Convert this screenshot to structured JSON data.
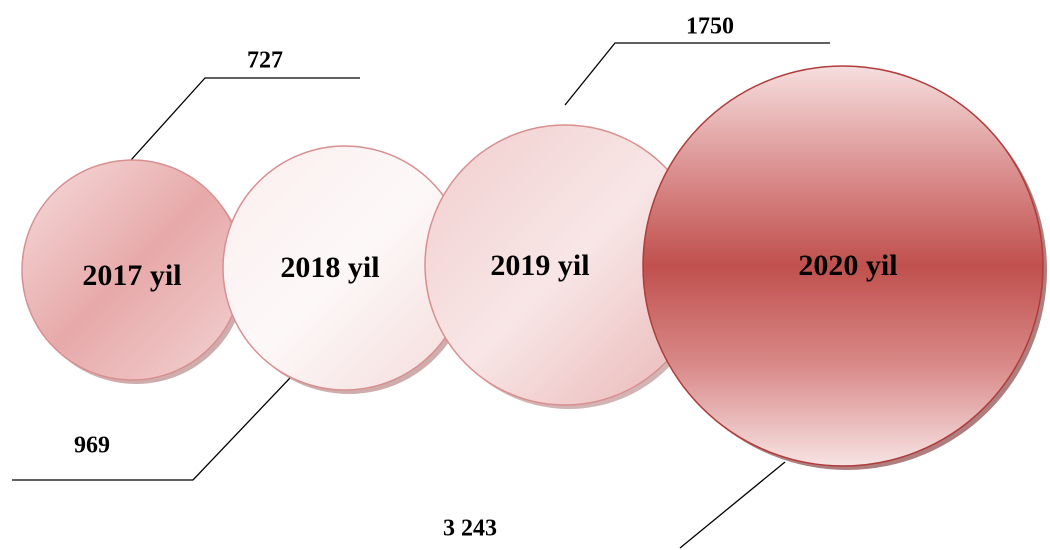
{
  "nodes": [
    {
      "label": "2017 yil",
      "value": "727"
    },
    {
      "label": "2018 yil",
      "value": "969"
    },
    {
      "label": "2019 yil",
      "value": "1750"
    },
    {
      "label": "2020 yil",
      "value": "3 243"
    }
  ]
}
